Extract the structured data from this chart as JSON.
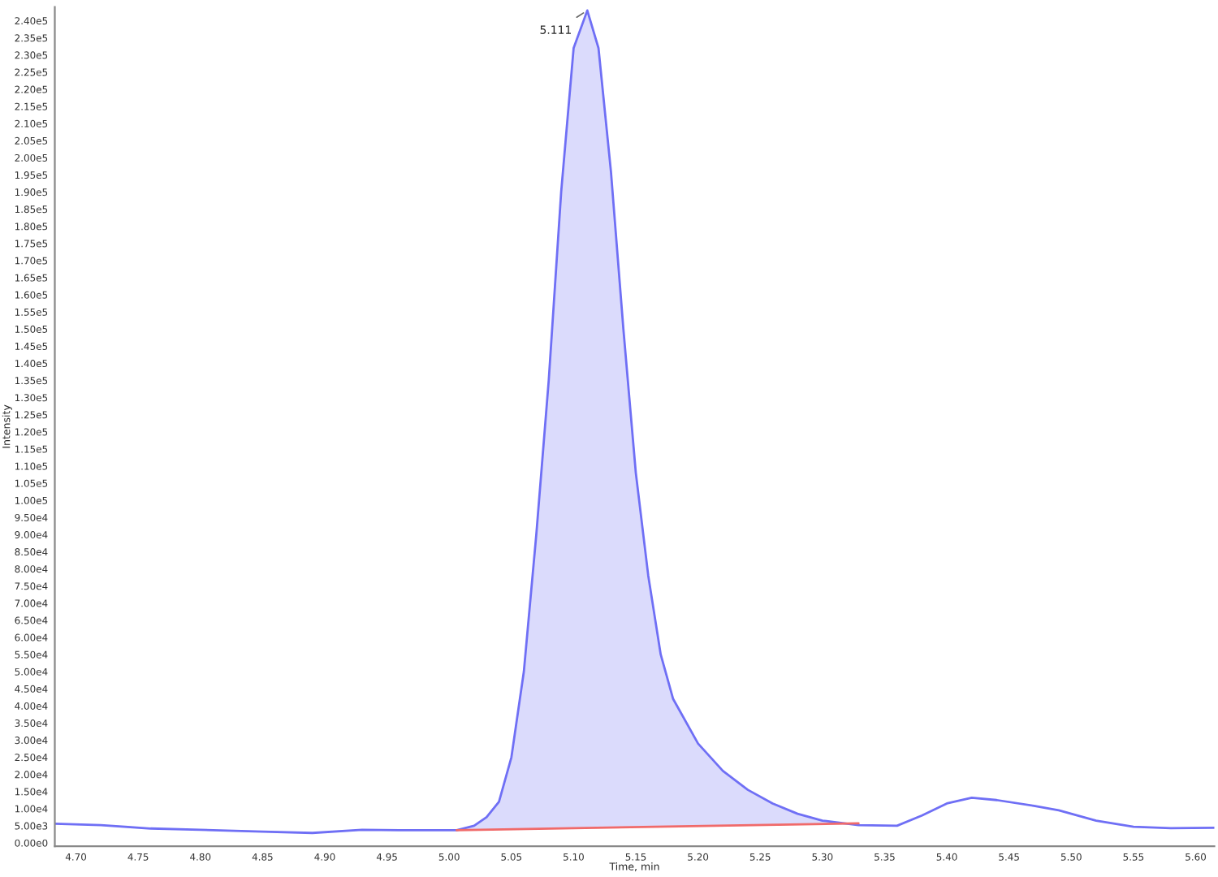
{
  "chart_data": {
    "type": "line",
    "xlabel": "Time, min",
    "ylabel": "Intensity",
    "xlim": [
      4.683,
      5.615
    ],
    "ylim": [
      -1000,
      244000
    ],
    "xticks": [
      {
        "value": 4.7,
        "label": "4.70"
      },
      {
        "value": 4.75,
        "label": "4.75"
      },
      {
        "value": 4.8,
        "label": "4.80"
      },
      {
        "value": 4.85,
        "label": "4.85"
      },
      {
        "value": 4.9,
        "label": "4.90"
      },
      {
        "value": 4.95,
        "label": "4.95"
      },
      {
        "value": 5.0,
        "label": "5.00"
      },
      {
        "value": 5.05,
        "label": "5.05"
      },
      {
        "value": 5.1,
        "label": "5.10"
      },
      {
        "value": 5.15,
        "label": "5.15"
      },
      {
        "value": 5.2,
        "label": "5.20"
      },
      {
        "value": 5.25,
        "label": "5.25"
      },
      {
        "value": 5.3,
        "label": "5.30"
      },
      {
        "value": 5.35,
        "label": "5.35"
      },
      {
        "value": 5.4,
        "label": "5.40"
      },
      {
        "value": 5.45,
        "label": "5.45"
      },
      {
        "value": 5.5,
        "label": "5.50"
      },
      {
        "value": 5.55,
        "label": "5.55"
      },
      {
        "value": 5.6,
        "label": "5.60"
      }
    ],
    "yticks": [
      {
        "value": 0,
        "label": "0.00e0"
      },
      {
        "value": 5000,
        "label": "5.00e3"
      },
      {
        "value": 10000,
        "label": "1.00e4"
      },
      {
        "value": 15000,
        "label": "1.50e4"
      },
      {
        "value": 20000,
        "label": "2.00e4"
      },
      {
        "value": 25000,
        "label": "2.50e4"
      },
      {
        "value": 30000,
        "label": "3.00e4"
      },
      {
        "value": 35000,
        "label": "3.50e4"
      },
      {
        "value": 40000,
        "label": "4.00e4"
      },
      {
        "value": 45000,
        "label": "4.50e4"
      },
      {
        "value": 50000,
        "label": "5.00e4"
      },
      {
        "value": 55000,
        "label": "5.50e4"
      },
      {
        "value": 60000,
        "label": "6.00e4"
      },
      {
        "value": 65000,
        "label": "6.50e4"
      },
      {
        "value": 70000,
        "label": "7.00e4"
      },
      {
        "value": 75000,
        "label": "7.50e4"
      },
      {
        "value": 80000,
        "label": "8.00e4"
      },
      {
        "value": 85000,
        "label": "8.50e4"
      },
      {
        "value": 90000,
        "label": "9.00e4"
      },
      {
        "value": 95000,
        "label": "9.50e4"
      },
      {
        "value": 100000,
        "label": "1.00e5"
      },
      {
        "value": 105000,
        "label": "1.05e5"
      },
      {
        "value": 110000,
        "label": "1.10e5"
      },
      {
        "value": 115000,
        "label": "1.15e5"
      },
      {
        "value": 120000,
        "label": "1.20e5"
      },
      {
        "value": 125000,
        "label": "1.25e5"
      },
      {
        "value": 130000,
        "label": "1.30e5"
      },
      {
        "value": 135000,
        "label": "1.35e5"
      },
      {
        "value": 140000,
        "label": "1.40e5"
      },
      {
        "value": 145000,
        "label": "1.45e5"
      },
      {
        "value": 150000,
        "label": "1.50e5"
      },
      {
        "value": 155000,
        "label": "1.55e5"
      },
      {
        "value": 160000,
        "label": "1.60e5"
      },
      {
        "value": 165000,
        "label": "1.65e5"
      },
      {
        "value": 170000,
        "label": "1.70e5"
      },
      {
        "value": 175000,
        "label": "1.75e5"
      },
      {
        "value": 180000,
        "label": "1.80e5"
      },
      {
        "value": 185000,
        "label": "1.85e5"
      },
      {
        "value": 190000,
        "label": "1.90e5"
      },
      {
        "value": 195000,
        "label": "1.95e5"
      },
      {
        "value": 200000,
        "label": "2.00e5"
      },
      {
        "value": 205000,
        "label": "2.05e5"
      },
      {
        "value": 210000,
        "label": "2.10e5"
      },
      {
        "value": 215000,
        "label": "2.15e5"
      },
      {
        "value": 220000,
        "label": "2.20e5"
      },
      {
        "value": 225000,
        "label": "2.25e5"
      },
      {
        "value": 230000,
        "label": "2.30e5"
      },
      {
        "value": 235000,
        "label": "2.35e5"
      },
      {
        "value": 240000,
        "label": "2.40e5"
      }
    ],
    "annotations": [
      {
        "text": "5.111",
        "x": 5.111,
        "y": 243000
      }
    ],
    "grid": false,
    "legend": false,
    "series": [
      {
        "color": "#6f6ff5",
        "x": [
          4.683,
          4.72,
          4.76,
          4.8,
          4.85,
          4.89,
          4.93,
          4.96,
          5.006,
          5.02,
          5.03,
          5.04,
          5.05,
          5.06,
          5.07,
          5.08,
          5.09,
          5.1,
          5.111,
          5.12,
          5.13,
          5.14,
          5.15,
          5.16,
          5.17,
          5.18,
          5.2,
          5.22,
          5.24,
          5.26,
          5.28,
          5.3,
          5.329,
          5.36,
          5.38,
          5.4,
          5.42,
          5.44,
          5.47,
          5.49,
          5.52,
          5.55,
          5.58,
          5.615
        ],
        "values": [
          5600,
          5200,
          4200,
          3800,
          3300,
          2900,
          3800,
          3700,
          3700,
          5000,
          7500,
          12000,
          25000,
          50000,
          90000,
          135000,
          190000,
          232000,
          243000,
          232000,
          196000,
          150000,
          108000,
          78000,
          55000,
          42000,
          29000,
          21000,
          15500,
          11500,
          8500,
          6500,
          5200,
          5000,
          8000,
          11500,
          13200,
          12500,
          10800,
          9500,
          6500,
          4700,
          4300,
          4400
        ],
        "lower": [
          null,
          null,
          null,
          null,
          null,
          null,
          null,
          null,
          3700,
          3790,
          3850,
          3910,
          3970,
          4030,
          4090,
          4150,
          4210,
          4270,
          4340,
          4390,
          4450,
          4510,
          4580,
          4640,
          4700,
          4760,
          4880,
          5000,
          5130,
          5250,
          5370,
          5490,
          5200,
          null,
          null,
          null,
          null,
          null,
          null,
          null,
          null,
          null,
          null,
          null
        ],
        "upper": [
          null,
          null,
          null,
          null,
          null,
          null,
          null,
          null,
          3700,
          5000,
          7500,
          12000,
          25000,
          50000,
          90000,
          135000,
          190000,
          232000,
          243000,
          232000,
          196000,
          150000,
          108000,
          78000,
          55000,
          42000,
          29000,
          21000,
          15500,
          11500,
          8500,
          6500,
          5200,
          null,
          null,
          null,
          null,
          null,
          null,
          null,
          null,
          null,
          null,
          null
        ]
      },
      {
        "color": "#f06a6a",
        "x": [
          5.006,
          5.329
        ],
        "values": [
          3700,
          5700
        ]
      }
    ]
  }
}
